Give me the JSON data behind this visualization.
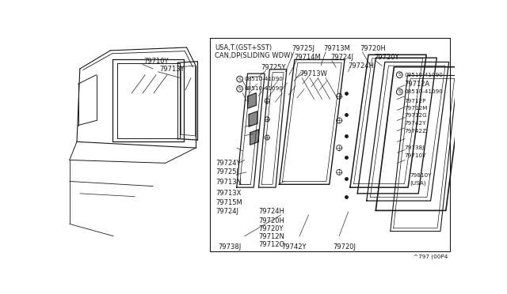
{
  "bg_color": "#ffffff",
  "line_color": "#1a1a1a",
  "text_color": "#1a1a1a",
  "fig_width": 6.4,
  "fig_height": 3.72,
  "diagram_note": "^797 (00P4",
  "title_lines": [
    "USA,T.(GST+SST)",
    "CAN,DP(SLIDING WDW)"
  ]
}
